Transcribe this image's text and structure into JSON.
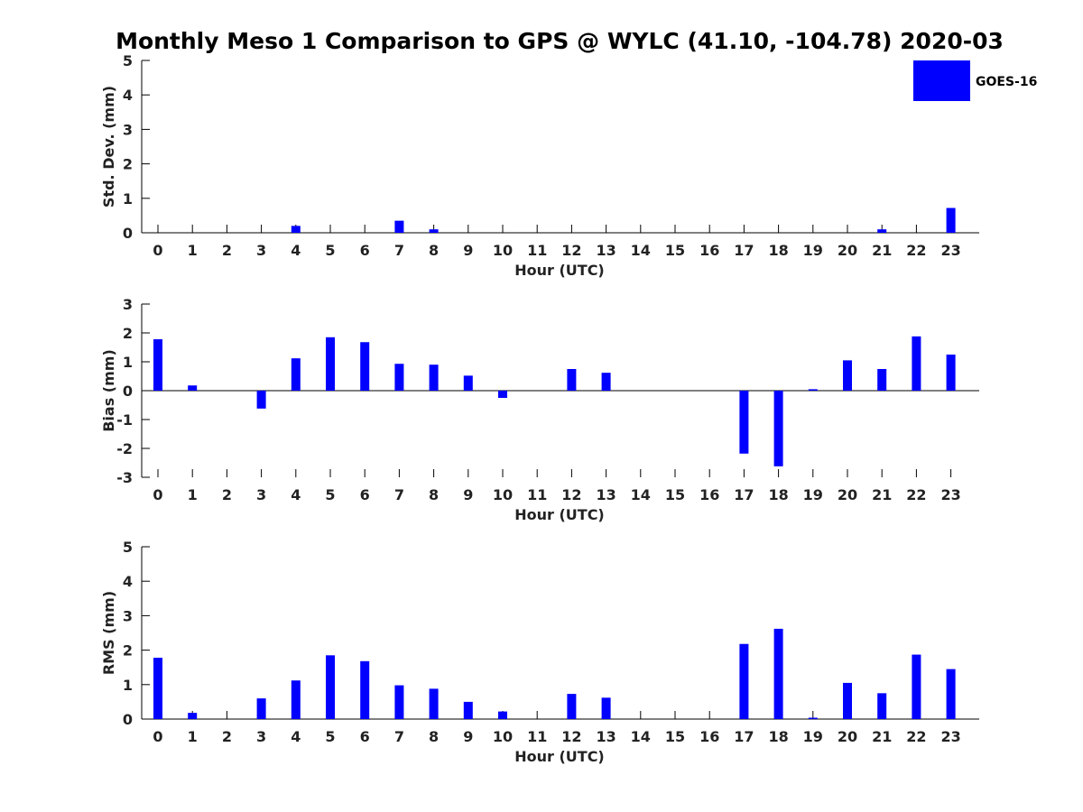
{
  "chart_data": {
    "title": "Monthly Meso 1 Comparison to GPS @ WYLC (41.10, -104.78) 2020-03",
    "bar_color": "#0000ff",
    "legend": {
      "label": "GOES-16",
      "position": "top-right"
    },
    "panels": [
      {
        "type": "bar",
        "series_name": "GOES-16",
        "ylabel": "Std. Dev. (mm)",
        "xlabel": "Hour (UTC)",
        "ylim": [
          0,
          5
        ],
        "yticks": [
          0,
          1,
          2,
          3,
          4,
          5
        ],
        "categories": [
          "0",
          "1",
          "2",
          "3",
          "4",
          "5",
          "6",
          "7",
          "8",
          "9",
          "10",
          "11",
          "12",
          "13",
          "14",
          "15",
          "16",
          "17",
          "18",
          "19",
          "20",
          "21",
          "22",
          "23"
        ],
        "values": [
          0,
          0,
          0,
          0,
          0.2,
          0,
          0,
          0.35,
          0.1,
          0,
          0,
          0,
          0,
          0,
          0,
          0,
          0,
          0,
          0,
          0,
          0,
          0.1,
          0,
          0.72
        ]
      },
      {
        "type": "bar",
        "series_name": "GOES-16",
        "ylabel": "Bias (mm)",
        "xlabel": "Hour (UTC)",
        "ylim": [
          -3,
          3
        ],
        "yticks": [
          -3,
          -2,
          -1,
          0,
          1,
          2,
          3
        ],
        "categories": [
          "0",
          "1",
          "2",
          "3",
          "4",
          "5",
          "6",
          "7",
          "8",
          "9",
          "10",
          "11",
          "12",
          "13",
          "14",
          "15",
          "16",
          "17",
          "18",
          "19",
          "20",
          "21",
          "22",
          "23"
        ],
        "values": [
          1.78,
          0.18,
          0,
          -0.62,
          1.12,
          1.85,
          1.68,
          0.93,
          0.9,
          0.52,
          -0.25,
          0,
          0.75,
          0.62,
          0,
          0,
          0,
          -2.18,
          -2.62,
          0.05,
          1.05,
          0.75,
          1.88,
          1.25
        ]
      },
      {
        "type": "bar",
        "series_name": "GOES-16",
        "ylabel": "RMS (mm)",
        "xlabel": "Hour (UTC)",
        "ylim": [
          0,
          5
        ],
        "yticks": [
          0,
          1,
          2,
          3,
          4,
          5
        ],
        "categories": [
          "0",
          "1",
          "2",
          "3",
          "4",
          "5",
          "6",
          "7",
          "8",
          "9",
          "10",
          "11",
          "12",
          "13",
          "14",
          "15",
          "16",
          "17",
          "18",
          "19",
          "20",
          "21",
          "22",
          "23"
        ],
        "values": [
          1.78,
          0.18,
          0,
          0.6,
          1.12,
          1.85,
          1.68,
          0.98,
          0.88,
          0.5,
          0.22,
          0,
          0.73,
          0.62,
          0,
          0,
          0,
          2.18,
          2.62,
          0.04,
          1.05,
          0.75,
          1.87,
          1.45
        ]
      }
    ]
  }
}
